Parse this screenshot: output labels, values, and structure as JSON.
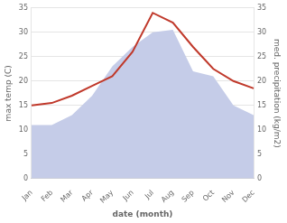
{
  "chart_data": {
    "type": "line",
    "xlabel": "date (month)",
    "ylabel": "max temp (C)",
    "y2label": "med. precipitation (kg/m2)",
    "categories": [
      "Jan",
      "Feb",
      "Mar",
      "Apr",
      "May",
      "Jun",
      "Jul",
      "Aug",
      "Sep",
      "Oct",
      "Nov",
      "Dec"
    ],
    "series": [
      {
        "type": "area",
        "axis": "y2",
        "color": "#c5cce8",
        "values": [
          11.0,
          11.0,
          13.0,
          17.0,
          23.0,
          27.0,
          30.0,
          30.5,
          22.0,
          21.0,
          15.0,
          13.0
        ]
      },
      {
        "type": "line",
        "color": "#c0392b",
        "values": [
          15.0,
          15.5,
          17.0,
          19.0,
          21.0,
          26.0,
          34.0,
          32.0,
          27.0,
          22.5,
          20.0,
          18.5
        ]
      }
    ],
    "ylim": [
      0,
      35
    ],
    "yticks": [
      0,
      5,
      10,
      15,
      20,
      25,
      30,
      35
    ],
    "y2lim": [
      0,
      35
    ],
    "y2ticks": [
      0,
      5,
      10,
      15,
      20,
      25,
      30,
      35
    ],
    "grid": true
  }
}
